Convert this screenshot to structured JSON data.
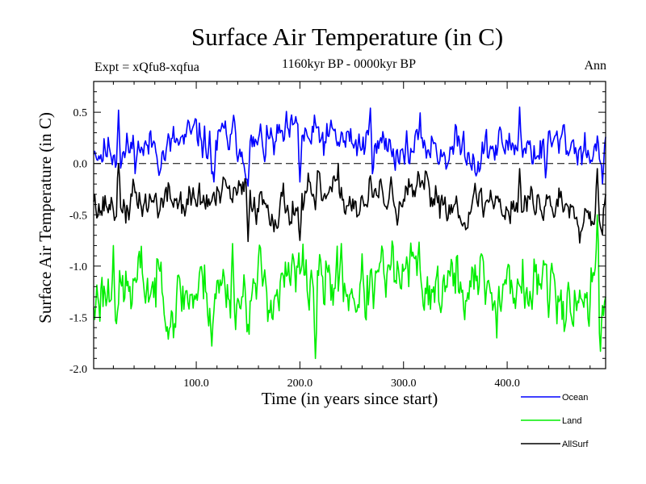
{
  "chart_data": {
    "type": "line",
    "title": "Surface Air Temperature (in C)",
    "experiment_label": "Expt = xQfu8-xqfua",
    "period_label": "1160kyr BP - 0000kyr BP",
    "season_label": "Ann",
    "xlabel": "Time (in years since start)",
    "ylabel": "Surface Air Temperature (in C)",
    "xlim": [
      1,
      495
    ],
    "ylim": [
      -2.0,
      0.8
    ],
    "x_ticks": [
      100,
      200,
      300,
      400
    ],
    "x_tick_labels": [
      "100.0",
      "200.0",
      "300.0",
      "400.0"
    ],
    "y_ticks": [
      -2.0,
      -1.5,
      -1.0,
      -0.5,
      0.0,
      0.5
    ],
    "y_tick_labels": [
      "-2.0",
      "-1.5",
      "-1.0",
      "-0.5",
      "0.0",
      "0.5"
    ],
    "zero_line": 0.0,
    "legend_position": "bottom-right, below plot",
    "x": {
      "start": 1,
      "end": 495,
      "step": 1
    },
    "series": [
      {
        "name": "Ocean",
        "color": "#0000ff",
        "mean": 0.17,
        "amplitude": 0.13,
        "seed": 11,
        "anchors": [
          [
            2,
            0.12
          ],
          [
            25,
            0.52
          ],
          [
            47,
            0.16
          ],
          [
            115,
            -0.1
          ],
          [
            117,
            -0.18
          ],
          [
            150,
            -0.22
          ],
          [
            200,
            -0.18
          ],
          [
            268,
            0.54
          ],
          [
            300,
            0.08
          ],
          [
            370,
            -0.12
          ],
          [
            412,
            0.55
          ],
          [
            437,
            -0.14
          ],
          [
            492,
            -0.2
          ],
          [
            495,
            0.26
          ]
        ]
      },
      {
        "name": "Land",
        "color": "#00ee00",
        "mean": -1.2,
        "amplitude": 0.21,
        "seed": 23,
        "anchors": [
          [
            2,
            -1.52
          ],
          [
            20,
            -0.8
          ],
          [
            70,
            -1.55
          ],
          [
            115,
            -1.78
          ],
          [
            135,
            -0.78
          ],
          [
            215,
            -1.9
          ],
          [
            240,
            -0.78
          ],
          [
            300,
            -1.05
          ],
          [
            390,
            -1.7
          ],
          [
            440,
            -1.5
          ],
          [
            487,
            -0.5
          ],
          [
            490,
            -1.83
          ],
          [
            495,
            -1.3
          ]
        ]
      },
      {
        "name": "AllSurf",
        "color": "#000000",
        "mean": -0.37,
        "amplitude": 0.12,
        "seed": 37,
        "anchors": [
          [
            2,
            -0.3
          ],
          [
            25,
            0.0
          ],
          [
            35,
            -0.55
          ],
          [
            150,
            -0.76
          ],
          [
            200,
            -0.75
          ],
          [
            215,
            -0.45
          ],
          [
            268,
            -0.12
          ],
          [
            300,
            -0.35
          ],
          [
            412,
            -0.05
          ],
          [
            487,
            -0.05
          ],
          [
            490,
            -0.62
          ],
          [
            495,
            -0.3
          ]
        ]
      }
    ]
  }
}
